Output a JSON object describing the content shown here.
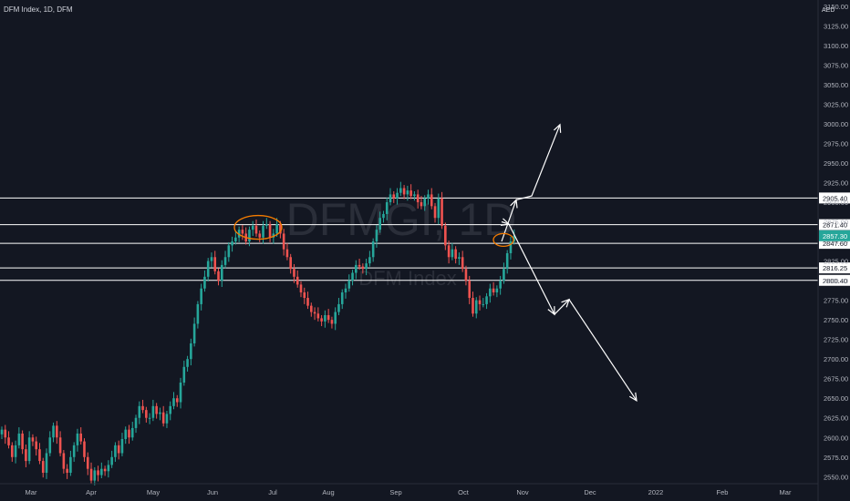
{
  "header": {
    "title": "DFM Index, 1D, DFM",
    "currency": "AED"
  },
  "watermark": {
    "symbol": "DFMGI, 1D",
    "name": "DFM Index"
  },
  "colors": {
    "background": "#131722",
    "up": "#26a69a",
    "down": "#ef5350",
    "level_line": "#ffffff",
    "annotation": "#ffffff",
    "highlight": "#f57c00",
    "axis_text": "#b2b5be",
    "watermark": "#2a2e39",
    "last_price_bg": "#26a69a"
  },
  "chart_data": {
    "type": "candlestick",
    "title": "DFM Index, 1D, DFM",
    "ylabel": "AED",
    "ylim": [
      2540,
      3150
    ],
    "y_ticks": [
      2550,
      2575,
      2600,
      2625,
      2650,
      2675,
      2700,
      2725,
      2750,
      2775,
      2800,
      2825,
      2850,
      2875,
      2900,
      2925,
      2950,
      2975,
      3000,
      3025,
      3050,
      3075,
      3100,
      3125,
      3150
    ],
    "y_tick_labels": [
      "2550.00",
      "2575.00",
      "2600.00",
      "2625.00",
      "2650.00",
      "2675.00",
      "2700.00",
      "2725.00",
      "2750.00",
      "2775.00",
      "2800.00",
      "2825.00",
      "2850.00",
      "2875.00",
      "2900.00",
      "2925.00",
      "2950.00",
      "2975.00",
      "3000.00",
      "3025.00",
      "3050.00",
      "3075.00",
      "3100.00",
      "3125.00",
      "3150.00"
    ],
    "x_ticks": [
      "Mar",
      "Apr",
      "May",
      "Jun",
      "Jul",
      "Aug",
      "Sep",
      "Oct",
      "Nov",
      "Dec",
      "2022",
      "Feb",
      "Mar"
    ],
    "last_price": "2857.30",
    "horizontal_levels": [
      {
        "value": 2905.4,
        "label": "2905.40"
      },
      {
        "value": 2871.4,
        "label": "2871.40"
      },
      {
        "value": 2847.6,
        "label": "2847.60"
      },
      {
        "value": 2816.25,
        "label": "2816.25"
      },
      {
        "value": 2800.4,
        "label": "2800.40"
      }
    ],
    "closes": [
      2610,
      2600,
      2590,
      2575,
      2590,
      2605,
      2585,
      2570,
      2600,
      2595,
      2585,
      2570,
      2555,
      2580,
      2600,
      2615,
      2600,
      2580,
      2560,
      2555,
      2575,
      2590,
      2605,
      2595,
      2575,
      2560,
      2545,
      2558,
      2552,
      2560,
      2557,
      2565,
      2575,
      2590,
      2580,
      2598,
      2610,
      2600,
      2612,
      2625,
      2640,
      2635,
      2625,
      2625,
      2640,
      2630,
      2632,
      2618,
      2630,
      2640,
      2650,
      2645,
      2670,
      2690,
      2700,
      2720,
      2745,
      2770,
      2790,
      2805,
      2825,
      2830,
      2812,
      2800,
      2820,
      2830,
      2845,
      2850,
      2855,
      2865,
      2860,
      2850,
      2865,
      2870,
      2860,
      2855,
      2870,
      2872,
      2855,
      2860,
      2872,
      2860,
      2840,
      2830,
      2815,
      2805,
      2795,
      2785,
      2778,
      2768,
      2760,
      2758,
      2752,
      2748,
      2756,
      2750,
      2745,
      2760,
      2770,
      2785,
      2790,
      2800,
      2810,
      2820,
      2818,
      2815,
      2822,
      2830,
      2850,
      2865,
      2880,
      2885,
      2900,
      2910,
      2905,
      2912,
      2918,
      2910,
      2915,
      2908,
      2910,
      2900,
      2895,
      2905,
      2910,
      2895,
      2880,
      2905,
      2870,
      2845,
      2830,
      2840,
      2828,
      2830,
      2815,
      2800,
      2778,
      2758,
      2775,
      2770,
      2770,
      2780,
      2790,
      2785,
      2790,
      2800,
      2815,
      2835,
      2850,
      2857.3
    ],
    "annotations": {
      "bull_path": [
        [
          2800,
          2850
        ],
        [
          2920,
          2903
        ],
        [
          2990,
          2999
        ]
      ],
      "bear_path": [
        [
          2800,
          2875
        ],
        [
          2760,
          2757
        ],
        [
          2770,
          2776
        ],
        [
          2640,
          2647
        ]
      ],
      "double_top_marker": {
        "center": 2868
      },
      "current_marker": {
        "center": 2852
      }
    }
  }
}
